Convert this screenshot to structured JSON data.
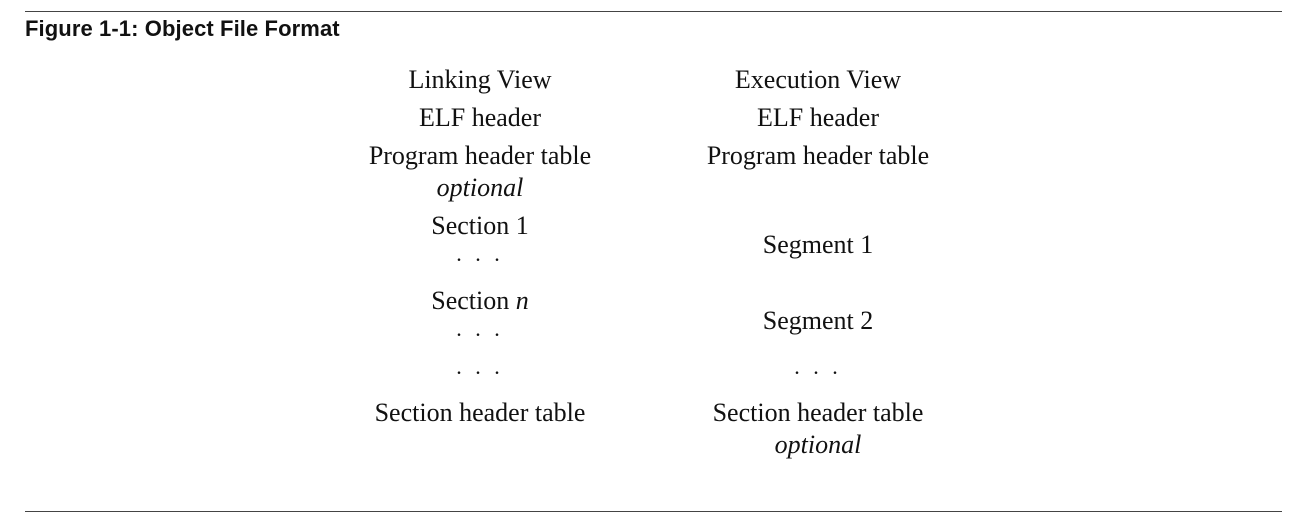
{
  "figure": {
    "title": "Figure 1-1:  Object File Format"
  },
  "linking_view": {
    "heading": "Linking View",
    "elf_header": "ELF header",
    "program_header_table": "Program header table",
    "program_header_note": "optional",
    "section_1": "Section 1",
    "section_1_dots": ". . .",
    "section_n_prefix": "Section",
    "section_n_var": "n",
    "section_n_dots": ". . .",
    "more_dots": ". . .",
    "section_header_table": "Section header table"
  },
  "execution_view": {
    "heading": "Execution View",
    "elf_header": "ELF header",
    "program_header_table": "Program header table",
    "segment_1": "Segment 1",
    "segment_2": "Segment 2",
    "more_dots": ". . .",
    "section_header_table": "Section header table",
    "section_header_note": "optional"
  }
}
